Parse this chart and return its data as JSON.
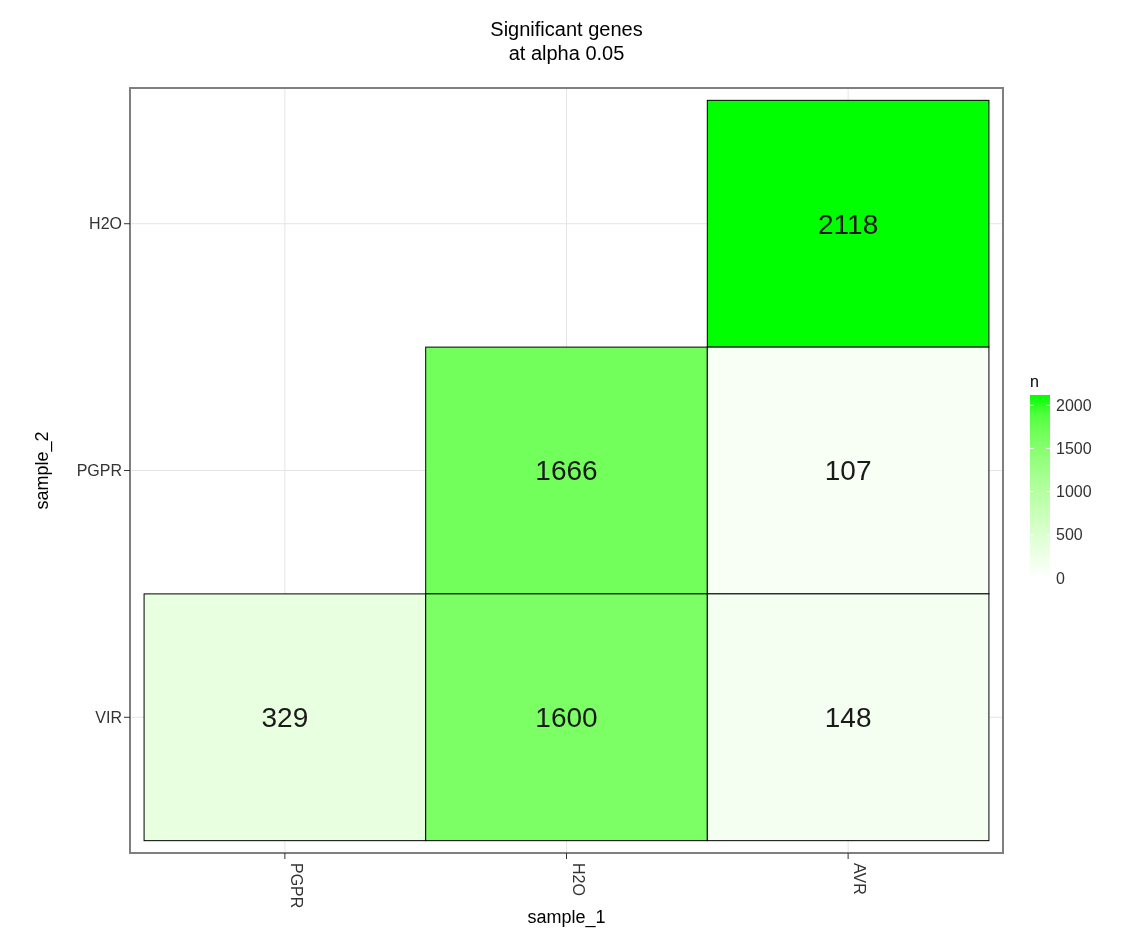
{
  "chart_data": {
    "type": "heatmap",
    "title": "Significant genes\nat alpha 0.05",
    "xlabel": "sample_1",
    "ylabel": "sample_2",
    "clabel": "n",
    "categories": [
      "PGPR",
      "H2O",
      "AVR"
    ],
    "y_categories": [
      "H2O",
      "PGPR",
      "VIR"
    ],
    "cells": [
      [
        null,
        null,
        2118
      ],
      [
        null,
        1666,
        107
      ],
      [
        329,
        1600,
        148
      ]
    ],
    "colors": [
      "#ffffff",
      "#00ff00"
    ],
    "clim": [
      0,
      2118
    ],
    "cticks": [
      0,
      500,
      1000,
      1500,
      2000
    ],
    "data_labels": true,
    "grid": true
  }
}
